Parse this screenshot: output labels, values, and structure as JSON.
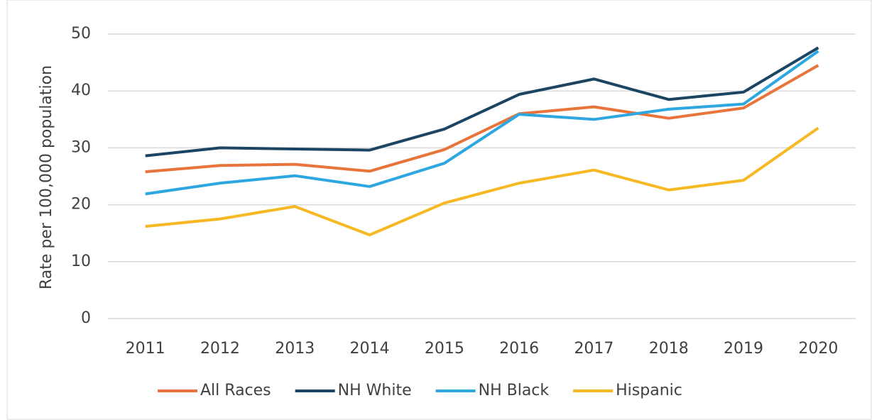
{
  "chart_data": {
    "type": "line",
    "ylabel": "Rate per 100,000 population",
    "categories": [
      "2011",
      "2012",
      "2013",
      "2014",
      "2015",
      "2016",
      "2017",
      "2018",
      "2019",
      "2020"
    ],
    "series": [
      {
        "name": "All Races",
        "color": "#e8743b",
        "values": [
          25.8,
          26.9,
          27.1,
          25.9,
          29.7,
          36.0,
          37.2,
          35.2,
          37.0,
          44.5
        ]
      },
      {
        "name": "NH White",
        "color": "#1b4562",
        "values": [
          28.6,
          30.0,
          29.8,
          29.6,
          33.3,
          39.4,
          42.1,
          38.5,
          39.8,
          47.6
        ]
      },
      {
        "name": "NH Black",
        "color": "#2ea7e0",
        "values": [
          21.9,
          23.8,
          25.1,
          23.2,
          27.3,
          35.9,
          35.0,
          36.8,
          37.7,
          47.0
        ]
      },
      {
        "name": "Hispanic",
        "color": "#f7b923",
        "values": [
          16.2,
          17.5,
          19.7,
          14.7,
          20.3,
          23.8,
          26.1,
          22.6,
          24.3,
          33.5
        ]
      }
    ],
    "ylim": [
      0,
      50
    ],
    "yticks": [
      0,
      10,
      20,
      30,
      40,
      50
    ],
    "grid": true,
    "legend": "bottom"
  }
}
